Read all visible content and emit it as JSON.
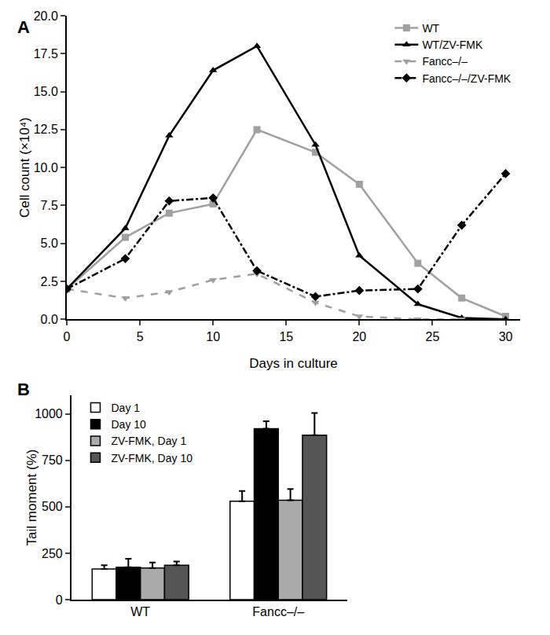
{
  "chart_data": [
    {
      "type": "line",
      "title": "A",
      "x_label": "Days in culture",
      "y_label": "Cell count (×10⁴)",
      "x": [
        0,
        4,
        7,
        10,
        13,
        17,
        20,
        24,
        27,
        30
      ],
      "series": [
        {
          "name": "WT",
          "color": "#a0a0a0",
          "marker": "square",
          "line_style": "solid",
          "values": [
            2.0,
            5.4,
            7.0,
            7.6,
            12.5,
            11.0,
            8.9,
            3.7,
            1.4,
            0.2
          ]
        },
        {
          "name": "WT/ZV-FMK",
          "color": "#000000",
          "marker": "triangle-up",
          "line_style": "solid",
          "values": [
            2.0,
            6.0,
            12.1,
            16.4,
            18.0,
            11.5,
            4.2,
            1.0,
            0.1,
            0.0
          ]
        },
        {
          "name": "Fancc–/–",
          "color": "#a0a0a0",
          "marker": "triangle-down",
          "line_style": "dash",
          "values": [
            2.0,
            1.4,
            1.8,
            2.6,
            3.0,
            1.1,
            0.2,
            0.0,
            0.0,
            null
          ]
        },
        {
          "name": "Fancc–/–/ZV-FMK",
          "color": "#000000",
          "marker": "diamond",
          "line_style": "dashdot",
          "values": [
            2.0,
            4.0,
            7.8,
            8.0,
            3.2,
            1.5,
            1.9,
            2.0,
            6.2,
            9.6
          ]
        }
      ],
      "xlim": [
        0,
        31
      ],
      "xticks": [
        0,
        5,
        10,
        15,
        20,
        25,
        30
      ],
      "ylim": [
        0,
        20
      ],
      "yticks": [
        {
          "value": 0,
          "label": "0.0"
        },
        {
          "value": 2.5,
          "label": "2.5"
        },
        {
          "value": 5,
          "label": "5.0"
        },
        {
          "value": 7.5,
          "label": "7.5"
        },
        {
          "value": 10,
          "label": "10.0"
        },
        {
          "value": 12.5,
          "label": "12.5"
        },
        {
          "value": 15,
          "label": "15.0"
        },
        {
          "value": 17.5,
          "label": "17.5"
        },
        {
          "value": 20,
          "label": "20.0"
        }
      ],
      "legend": "upper right",
      "grid": false
    },
    {
      "type": "bar",
      "title": "B",
      "y_label": "Tail moment (%)",
      "categories": [
        "WT",
        "Fancc–/–"
      ],
      "series": [
        {
          "name": "Day 1",
          "color": "#ffffff",
          "values": [
            165,
            530
          ],
          "errors": [
            20,
            55
          ]
        },
        {
          "name": "Day 10",
          "color": "#000000",
          "values": [
            175,
            920
          ],
          "errors": [
            45,
            40
          ]
        },
        {
          "name": "ZV-FMK, Day 1",
          "color": "#aaaaaa",
          "values": [
            170,
            535
          ],
          "errors": [
            30,
            60
          ]
        },
        {
          "name": "ZV-FMK, Day 10",
          "color": "#555555",
          "values": [
            185,
            885
          ],
          "errors": [
            20,
            120
          ]
        }
      ],
      "ylim": [
        0,
        1100
      ],
      "yticks": [
        0,
        250,
        500,
        750,
        1000
      ],
      "legend": "upper left",
      "grid": false
    }
  ]
}
